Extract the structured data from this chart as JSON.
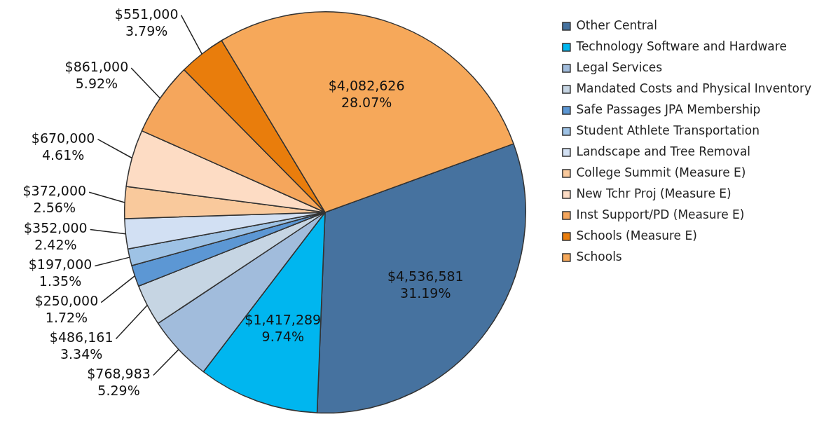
{
  "chart_data": {
    "type": "pie",
    "categories": [
      "Other Central",
      "Technology Software and Hardware",
      "Legal Services",
      "Mandated Costs and Physical Inventory",
      "Safe Passages JPA Membership",
      "Student Athlete Transportation",
      "Landscape and Tree Removal",
      "College Summit (Measure E)",
      "New Tchr Proj (Measure E)",
      "Inst Support/PD (Measure E)",
      "Schools (Measure E)",
      "Schools"
    ],
    "values": [
      4536581,
      1417289,
      768983,
      486161,
      250000,
      197000,
      352000,
      372000,
      670000,
      861000,
      551000,
      4082626
    ],
    "colors": [
      "#46729f",
      "#00b6ef",
      "#a1bcdc",
      "#c6d5e3",
      "#5c97d4",
      "#9ec2e5",
      "#d2e0f3",
      "#f9c99c",
      "#fddcc4",
      "#f5a65c",
      "#e97d0c",
      "#f6a85a"
    ],
    "value_labels": [
      "$4,536,581\n31.19%",
      "$1,417,289\n9.74%",
      "$768,983\n5.29%",
      "$486,161\n3.34%",
      "$250,000\n1.72%",
      "$197,000\n1.35%",
      "$352,000\n2.42%",
      "$372,000\n2.56%",
      "$670,000\n4.61%",
      "$861,000\n5.92%",
      "$551,000\n3.79%",
      "$4,082,626\n28.07%"
    ],
    "legend": "right"
  }
}
